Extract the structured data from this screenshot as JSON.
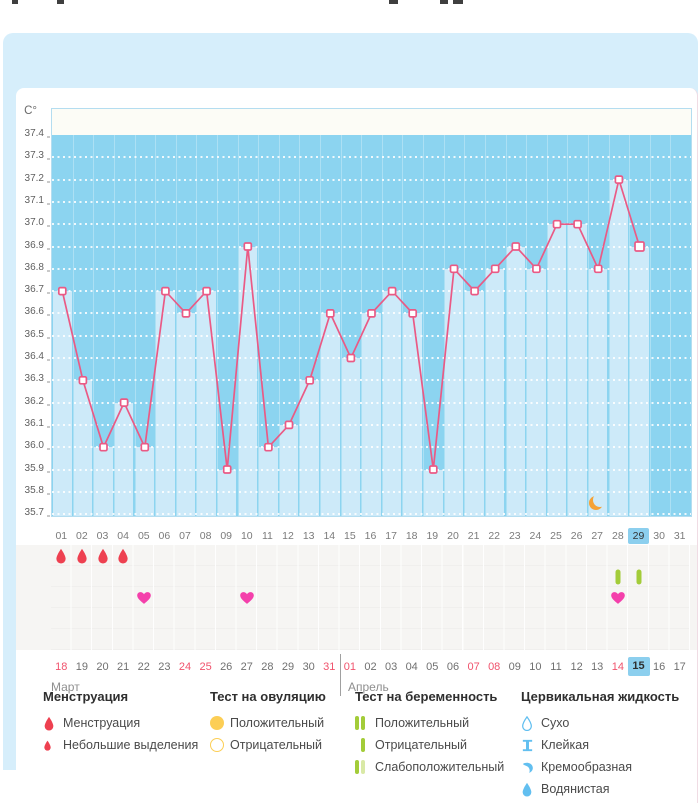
{
  "chart_data": {
    "type": "line",
    "title": "Базальная температура",
    "ylabel": "C°",
    "xlabel": "",
    "ylim": [
      35.7,
      37.4
    ],
    "y_tick_step": 0.1,
    "y_ticks": [
      "37.4",
      "37.3",
      "37.2",
      "37.1",
      "37.0",
      "36.9",
      "36.8",
      "36.7",
      "36.6",
      "36.5",
      "36.4",
      "36.3",
      "36.2",
      "36.1",
      "36.0",
      "35.9",
      "35.8",
      "35.7"
    ],
    "x": [
      "01",
      "02",
      "03",
      "04",
      "05",
      "06",
      "07",
      "08",
      "09",
      "10",
      "11",
      "12",
      "13",
      "14",
      "15",
      "16",
      "17",
      "18",
      "19",
      "20",
      "21",
      "22",
      "23",
      "24",
      "25",
      "26",
      "27",
      "28",
      "29",
      "30",
      "31"
    ],
    "values": [
      36.7,
      36.3,
      36.0,
      36.2,
      36.0,
      36.7,
      36.6,
      36.7,
      35.9,
      36.9,
      36.0,
      36.1,
      36.3,
      36.6,
      36.4,
      36.6,
      36.7,
      36.6,
      35.9,
      36.8,
      36.7,
      36.8,
      36.9,
      36.8,
      37.0,
      37.0,
      36.8,
      37.2,
      36.9,
      null,
      null
    ],
    "highlighted_x": "29",
    "grid": true,
    "legend_position": "bottom"
  },
  "events": {
    "menstruation_days": [
      "01",
      "02",
      "03",
      "04"
    ],
    "intercourse_days": [
      "05",
      "10",
      "28"
    ],
    "pregnancy_test_negative_days": [
      "28",
      "29"
    ],
    "moon_day": "27"
  },
  "cycle_calendar": {
    "march_label": "Март",
    "april_label": "Апрель",
    "march_days": [
      "18",
      "19",
      "20",
      "21",
      "22",
      "23",
      "24",
      "25",
      "26",
      "27",
      "28",
      "29",
      "30",
      "31"
    ],
    "april_days": [
      "01",
      "02",
      "03",
      "04",
      "05",
      "06",
      "07",
      "08",
      "09",
      "10",
      "11",
      "12",
      "13",
      "14",
      "15",
      "16",
      "17"
    ],
    "weekend_days_march": [
      "18",
      "24",
      "25",
      "31"
    ],
    "weekend_days_april": [
      "01",
      "07",
      "08",
      "14"
    ],
    "today_april": "15"
  },
  "legend": {
    "groups": [
      {
        "title": "Менструация",
        "items": [
          {
            "icon": "menstruation-drop-large",
            "label": "Менструация"
          },
          {
            "icon": "menstruation-drop-small",
            "label": "Небольшие выделения"
          }
        ]
      },
      {
        "title": "Тест на овуляцию",
        "items": [
          {
            "icon": "ovulation-positive",
            "label": "Положительный"
          },
          {
            "icon": "ovulation-negative",
            "label": "Отрицательный"
          }
        ]
      },
      {
        "title": "Тест на беременность",
        "items": [
          {
            "icon": "pregnancy-positive",
            "label": "Положительный"
          },
          {
            "icon": "pregnancy-negative",
            "label": "Отрицательный"
          },
          {
            "icon": "pregnancy-weak-positive",
            "label": "Слабоположительный"
          }
        ]
      },
      {
        "title": "Цервикальная жидкость",
        "items": [
          {
            "icon": "fluid-dry",
            "label": "Сухо"
          },
          {
            "icon": "fluid-sticky",
            "label": "Клейкая"
          },
          {
            "icon": "fluid-creamy",
            "label": "Кремообразная"
          },
          {
            "icon": "fluid-watery",
            "label": "Водянистая"
          }
        ]
      }
    ]
  },
  "colors": {
    "panel_bg": "#d6eefb",
    "plot_bg": "#8cd4f0",
    "bar_fill": "#cdeaf9",
    "line": "#ea5a85",
    "day_highlight_bg": "#8ccfee",
    "weekend_red": "#f0536d",
    "menstruation_red": "#ee4050",
    "heart_pink": "#f440ab",
    "test_green": "#a3cc39",
    "test_green_light": "#d9e9a6",
    "ovulation_yellow": "#fcce55",
    "fluid_blue": "#62bff0",
    "moon_orange": "#f5a236"
  }
}
